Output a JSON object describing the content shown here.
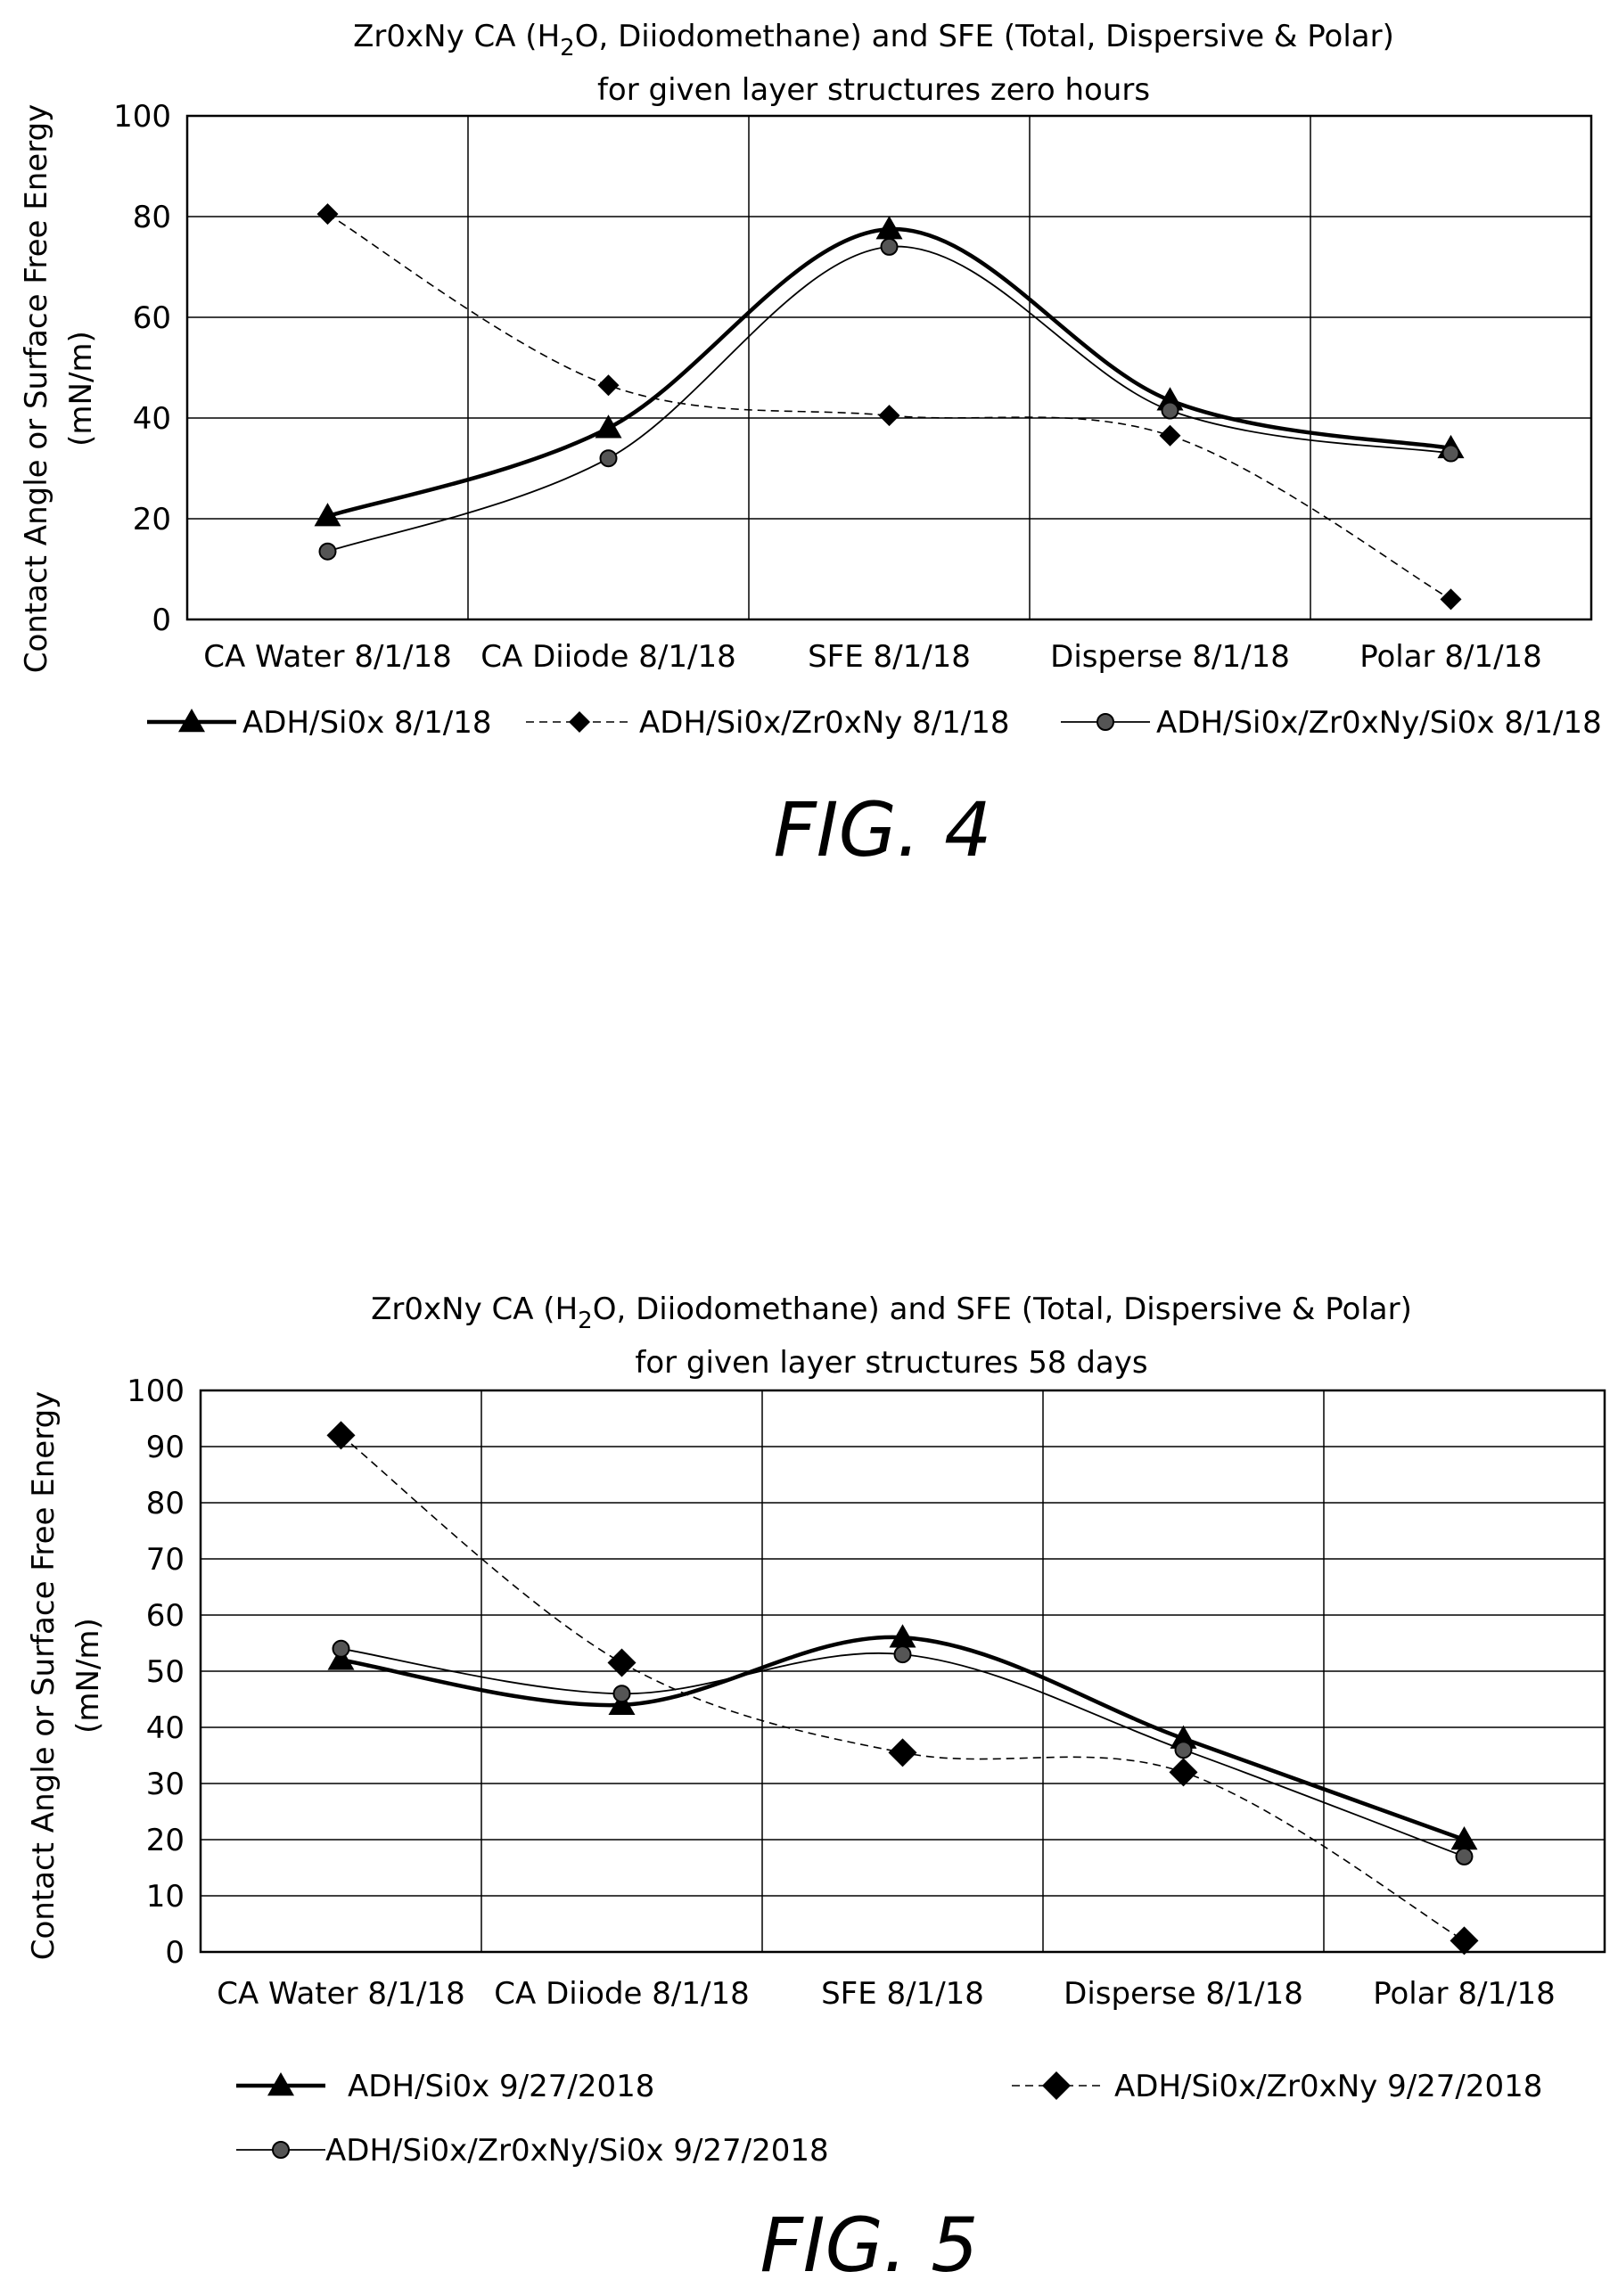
{
  "chart_data": [
    {
      "type": "line",
      "title_parts": [
        "Zr0xNy CA (H",
        "2",
        "O, Diiodomethane) and SFE (Total, Dispersive & Polar)"
      ],
      "subtitle": "for given layer structures zero hours",
      "ylabel_line1": "Contact Angle or Surface Free Energy",
      "ylabel_line2": "(mN/m)",
      "ylim": [
        0,
        100
      ],
      "yticks": [
        0,
        20,
        40,
        60,
        80,
        100
      ],
      "grid": true,
      "categories": [
        "CA Water 8/1/18",
        "CA Diiode 8/1/18",
        "SFE 8/1/18",
        "Disperse 8/1/18",
        "Polar 8/1/18"
      ],
      "series": [
        {
          "name": "ADH/Si0x 8/1/18",
          "marker": "triangle",
          "style": "thick",
          "values": [
            20.5,
            38,
            77.5,
            43.5,
            34
          ]
        },
        {
          "name": "ADH/Si0x/Zr0xNy 8/1/18",
          "marker": "diamond",
          "style": "dashed",
          "values": [
            80.5,
            46.5,
            40.5,
            36.5,
            4
          ]
        },
        {
          "name": "ADH/Si0x/Zr0xNy/Si0x 8/1/18",
          "marker": "circle",
          "style": "thin",
          "values": [
            13.5,
            32,
            74,
            41.5,
            33
          ]
        }
      ],
      "figure_label": "FIG. 4"
    },
    {
      "type": "line",
      "title_parts": [
        "Zr0xNy CA (H",
        "2",
        "O, Diiodomethane) and SFE (Total, Dispersive & Polar)"
      ],
      "subtitle": "for given layer structures 58 days",
      "ylabel_line1": "Contact Angle or Surface Free Energy",
      "ylabel_line2": "(mN/m)",
      "ylim": [
        0,
        100
      ],
      "yticks": [
        0,
        10,
        20,
        30,
        40,
        50,
        60,
        70,
        80,
        90,
        100
      ],
      "grid": true,
      "categories": [
        "CA Water 8/1/18",
        "CA Diiode 8/1/18",
        "SFE 8/1/18",
        "Disperse 8/1/18",
        "Polar 8/1/18"
      ],
      "series": [
        {
          "name": "ADH/Si0x 9/27/2018",
          "marker": "triangle",
          "style": "thick",
          "values": [
            52,
            44,
            56,
            38,
            20
          ]
        },
        {
          "name": "ADH/Si0x/Zr0xNy 9/27/2018",
          "marker": "diamond",
          "style": "dashed",
          "values": [
            92,
            51.5,
            35.5,
            32,
            2
          ]
        },
        {
          "name": "ADH/Si0x/Zr0xNy/Si0x 9/27/2018",
          "marker": "circle",
          "style": "thin",
          "values": [
            54,
            46,
            53,
            36,
            17
          ]
        }
      ],
      "figure_label": "FIG. 5"
    }
  ]
}
